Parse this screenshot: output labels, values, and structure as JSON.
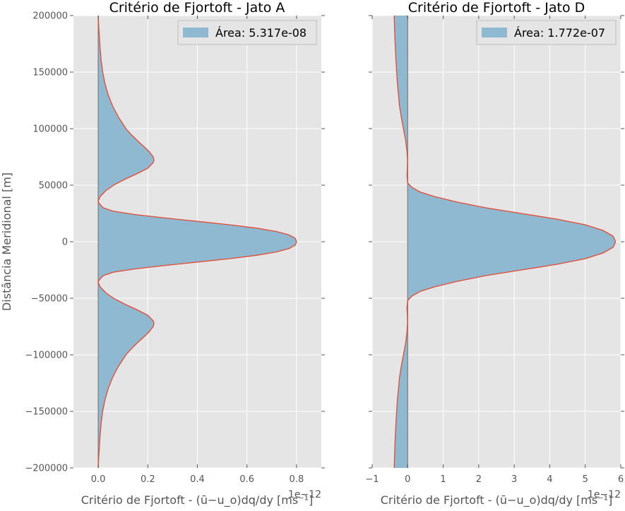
{
  "chart_data": [
    {
      "type": "area",
      "title": "Critério de Fjortoft - Jato A",
      "xlabel": "Critério de Fjortoft - (ū−u_o)dq/dy [ms⁻¹]",
      "ylabel": "Distância Meridional [m]",
      "x_offset_label": "1e−12",
      "xlim": [
        -0.1,
        0.9
      ],
      "ylim": [
        -200000,
        200000
      ],
      "x_ticks": [
        0.0,
        0.2,
        0.4,
        0.6,
        0.8
      ],
      "x_tick_labels": [
        "0.0",
        "0.2",
        "0.4",
        "0.6",
        "0.8"
      ],
      "y_ticks": [
        200000,
        150000,
        100000,
        50000,
        0,
        -50000,
        -100000,
        -150000,
        -200000
      ],
      "y_tick_labels": [
        "200000",
        "150000",
        "100000",
        "50000",
        "0",
        "−50000",
        "−100000",
        "−150000",
        "−200000"
      ],
      "grid": true,
      "legend": {
        "placement": "top-right",
        "label": "Área: 5.317e-08"
      },
      "colors": {
        "fill": "#8eb9d1",
        "line": "#e24a33",
        "axis_line": "#808080",
        "background": "#e5e5e5",
        "grid": "#ffffff"
      },
      "series": [
        {
          "y": [
            200000,
            190000,
            180000,
            170000,
            160000,
            150000,
            140000,
            130000,
            120000,
            110000,
            100000,
            95000,
            90000,
            85000,
            80000,
            75000,
            72000,
            70000,
            65000,
            60000,
            55000,
            50000,
            45000,
            40000,
            36000,
            34000,
            30000,
            27000,
            24000,
            21000,
            18000,
            15000,
            12000,
            9000,
            6000,
            3000,
            0,
            -3000,
            -6000,
            -9000,
            -12000,
            -15000,
            -18000,
            -21000,
            -24000,
            -27000,
            -30000,
            -34000,
            -36000,
            -40000,
            -45000,
            -50000,
            -55000,
            -60000,
            -65000,
            -70000,
            -72000,
            -75000,
            -80000,
            -85000,
            -90000,
            -95000,
            -100000,
            -110000,
            -120000,
            -130000,
            -140000,
            -150000,
            -160000,
            -170000,
            -180000,
            -190000,
            -200000
          ],
          "x": [
            0.0,
            0.002,
            0.005,
            0.008,
            0.012,
            0.018,
            0.027,
            0.04,
            0.058,
            0.082,
            0.112,
            0.132,
            0.155,
            0.18,
            0.204,
            0.222,
            0.225,
            0.222,
            0.2,
            0.155,
            0.105,
            0.062,
            0.03,
            0.008,
            0.0,
            0.003,
            0.02,
            0.06,
            0.15,
            0.27,
            0.4,
            0.53,
            0.64,
            0.72,
            0.77,
            0.795,
            0.8,
            0.795,
            0.77,
            0.72,
            0.64,
            0.53,
            0.4,
            0.27,
            0.15,
            0.06,
            0.02,
            0.003,
            0.0,
            0.008,
            0.03,
            0.062,
            0.105,
            0.155,
            0.2,
            0.222,
            0.225,
            0.222,
            0.204,
            0.18,
            0.155,
            0.132,
            0.112,
            0.082,
            0.058,
            0.04,
            0.027,
            0.018,
            0.012,
            0.008,
            0.005,
            0.002,
            0.0
          ]
        }
      ]
    },
    {
      "type": "area",
      "title": "Critério de Fjortoft - Jato D",
      "xlabel": "Critério de Fjortoft - (ū−u_o)dq/dy [ms⁻¹]",
      "x_offset_label": "1e−12",
      "xlim": [
        -1,
        6
      ],
      "ylim": [
        -200000,
        200000
      ],
      "x_ticks": [
        -1,
        0,
        1,
        2,
        3,
        4,
        5,
        6
      ],
      "x_tick_labels": [
        "−1",
        "0",
        "1",
        "2",
        "3",
        "4",
        "5",
        "6"
      ],
      "grid": true,
      "legend": {
        "placement": "top-right",
        "label": "Área: 1.772e-07"
      },
      "colors": {
        "fill": "#8eb9d1",
        "line": "#e24a33",
        "axis_line": "#808080",
        "background": "#e5e5e5",
        "grid": "#ffffff"
      },
      "series": [
        {
          "y": [
            200000,
            180000,
            160000,
            140000,
            120000,
            110000,
            100000,
            90000,
            80000,
            72000,
            65000,
            58000,
            52000,
            48000,
            44000,
            40000,
            35000,
            30000,
            25000,
            20000,
            15000,
            10000,
            5000,
            2000,
            0,
            -2000,
            -5000,
            -10000,
            -15000,
            -20000,
            -25000,
            -30000,
            -35000,
            -40000,
            -44000,
            -48000,
            -52000,
            -58000,
            -65000,
            -72000,
            -80000,
            -90000,
            -100000,
            -110000,
            -120000,
            -140000,
            -160000,
            -180000,
            -200000
          ],
          "x": [
            -0.38,
            -0.36,
            -0.33,
            -0.29,
            -0.23,
            -0.18,
            -0.12,
            -0.06,
            -0.02,
            -0.005,
            -0.01,
            -0.02,
            0.0,
            0.12,
            0.35,
            0.75,
            1.4,
            2.2,
            3.2,
            4.2,
            5.0,
            5.5,
            5.78,
            5.83,
            5.85,
            5.83,
            5.78,
            5.5,
            5.0,
            4.2,
            3.2,
            2.2,
            1.4,
            0.75,
            0.35,
            0.12,
            0.0,
            -0.02,
            -0.01,
            -0.005,
            -0.02,
            -0.06,
            -0.12,
            -0.18,
            -0.23,
            -0.29,
            -0.33,
            -0.36,
            -0.38
          ]
        }
      ]
    }
  ]
}
